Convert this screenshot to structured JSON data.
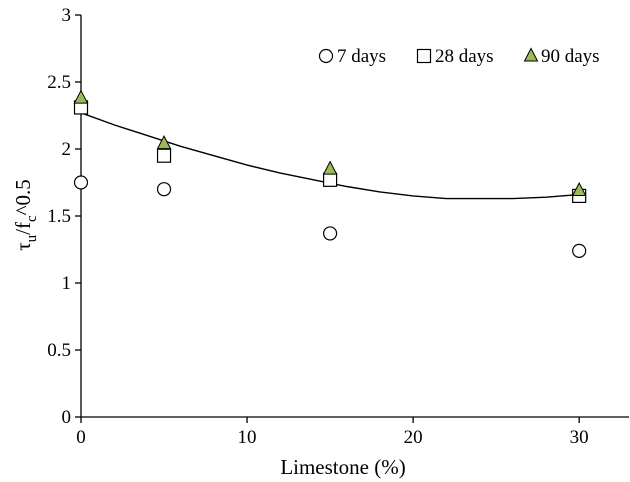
{
  "chart_data": {
    "type": "scatter",
    "xlabel": "Limestone (%)",
    "ylabel": {
      "symbol": "τ",
      "symbol_sub": "u",
      "mid": "/f",
      "mid_sub": "c",
      "suffix": "^0.5"
    },
    "xlim": [
      0,
      33
    ],
    "ylim": [
      0,
      3
    ],
    "xticks": [
      0,
      10,
      20,
      30
    ],
    "yticks": [
      0,
      0.5,
      1,
      1.5,
      2,
      2.5,
      3
    ],
    "ytick_labels": [
      "0",
      "0.5",
      "1",
      "1.5",
      "2",
      "2.5",
      "3"
    ],
    "xtick_labels": [
      "0",
      "10",
      "20",
      "30"
    ],
    "grid": false,
    "legend_position": "top-right",
    "series": [
      {
        "name": "7 days",
        "marker": "circle",
        "color": "#ffffff",
        "edge": "#000000",
        "x": [
          0,
          5,
          15,
          30
        ],
        "y": [
          1.75,
          1.7,
          1.37,
          1.24
        ]
      },
      {
        "name": "28 days",
        "marker": "square",
        "color": "#ffffff",
        "edge": "#000000",
        "x": [
          0,
          5,
          15,
          30
        ],
        "y": [
          2.31,
          1.95,
          1.77,
          1.65
        ]
      },
      {
        "name": "90 days",
        "marker": "triangle",
        "color": "#9bbb59",
        "edge": "#000000",
        "x": [
          0,
          5,
          15,
          30
        ],
        "y": [
          2.38,
          2.04,
          1.85,
          1.69
        ]
      }
    ],
    "trendline": {
      "type": "polynomial",
      "x": [
        0,
        2,
        4,
        6,
        8,
        10,
        12,
        14,
        16,
        18,
        20,
        22,
        24,
        26,
        28,
        30
      ],
      "y": [
        2.27,
        2.18,
        2.1,
        2.02,
        1.95,
        1.88,
        1.82,
        1.77,
        1.72,
        1.68,
        1.65,
        1.63,
        1.63,
        1.63,
        1.64,
        1.66
      ],
      "color": "#000000"
    }
  }
}
